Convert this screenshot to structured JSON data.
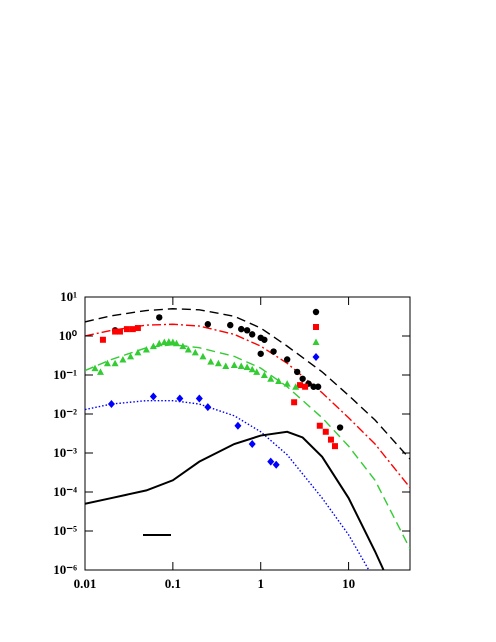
{
  "chart_data": {
    "type": "scatter",
    "xscale": "log",
    "yscale": "log",
    "xlim": [
      0.01,
      50
    ],
    "ylim": [
      1e-06,
      10
    ],
    "xticks": [
      0.01,
      0.1,
      1,
      10
    ],
    "yticks": [
      {
        "value": 10,
        "label": "10¹"
      },
      {
        "value": 1,
        "label": "10⁰"
      },
      {
        "value": 0.1,
        "label": "10⁻¹"
      },
      {
        "value": 0.01,
        "label": "10⁻²"
      },
      {
        "value": 0.001,
        "label": "10⁻³"
      },
      {
        "value": 0.0001,
        "label": "10⁻⁴"
      },
      {
        "value": 1e-05,
        "label": "10⁻⁵"
      },
      {
        "value": 1e-06,
        "label": "10⁻⁶"
      }
    ],
    "series": [
      {
        "color": "#000000",
        "marker": "circle",
        "x": [
          0.022,
          0.07,
          0.25,
          0.45,
          0.6,
          0.7,
          0.8,
          1.0,
          1.1,
          1.0,
          1.4,
          2.0,
          2.6,
          3.0,
          3.5,
          4.0,
          4.5,
          8.0
        ],
        "values": [
          1.4,
          3.0,
          2.0,
          1.9,
          1.5,
          1.4,
          1.1,
          0.9,
          0.8,
          0.35,
          0.4,
          0.25,
          0.12,
          0.08,
          0.06,
          0.05,
          0.05,
          0.0045
        ]
      },
      {
        "color": "#ff0000",
        "marker": "square",
        "x": [
          0.016,
          0.022,
          0.025,
          0.03,
          0.035,
          0.04,
          2.4,
          2.8,
          3.2,
          4.7,
          5.5,
          6.3,
          7.0
        ],
        "values": [
          0.8,
          1.3,
          1.3,
          1.5,
          1.5,
          1.6,
          0.02,
          0.055,
          0.05,
          0.005,
          0.0035,
          0.0022,
          0.0015
        ]
      },
      {
        "color": "#33cc33",
        "marker": "triangle",
        "x": [
          0.013,
          0.015,
          0.018,
          0.022,
          0.027,
          0.033,
          0.04,
          0.05,
          0.06,
          0.07,
          0.08,
          0.09,
          0.1,
          0.11,
          0.13,
          0.15,
          0.18,
          0.22,
          0.27,
          0.33,
          0.4,
          0.5,
          0.6,
          0.7,
          0.8,
          0.9,
          1.1,
          1.3,
          1.6,
          2.0,
          2.5
        ],
        "values": [
          0.15,
          0.12,
          0.2,
          0.2,
          0.25,
          0.3,
          0.38,
          0.45,
          0.55,
          0.65,
          0.7,
          0.72,
          0.7,
          0.65,
          0.55,
          0.45,
          0.38,
          0.3,
          0.22,
          0.2,
          0.17,
          0.18,
          0.17,
          0.16,
          0.14,
          0.12,
          0.1,
          0.08,
          0.07,
          0.06,
          0.05
        ]
      },
      {
        "color": "#0000ff",
        "marker": "diamond",
        "x": [
          0.02,
          0.06,
          0.12,
          0.2,
          0.25,
          0.55,
          0.8,
          1.3,
          1.5
        ],
        "values": [
          0.018,
          0.028,
          0.025,
          0.025,
          0.015,
          0.005,
          0.0017,
          0.0006,
          0.0005
        ]
      },
      {
        "color": "#000000",
        "line": "dashed",
        "x": [
          0.01,
          0.02,
          0.05,
          0.1,
          0.2,
          0.5,
          1,
          2,
          5,
          10,
          20,
          50
        ],
        "values": [
          2.3,
          3.3,
          4.5,
          5,
          4.7,
          3.2,
          1.6,
          0.55,
          0.12,
          0.03,
          0.007,
          0.0007
        ]
      },
      {
        "color": "#ff0000",
        "line": "dash-dot",
        "x": [
          0.01,
          0.02,
          0.05,
          0.1,
          0.2,
          0.5,
          1,
          2,
          5,
          10,
          20,
          50
        ],
        "values": [
          1.0,
          1.4,
          1.9,
          2.0,
          1.8,
          1.1,
          0.55,
          0.2,
          0.035,
          0.008,
          0.0017,
          0.00013
        ]
      },
      {
        "color": "#33cc33",
        "line": "dashed",
        "x": [
          0.01,
          0.02,
          0.05,
          0.1,
          0.2,
          0.5,
          1,
          2,
          5,
          10,
          20,
          50
        ],
        "values": [
          0.13,
          0.25,
          0.5,
          0.6,
          0.5,
          0.3,
          0.15,
          0.05,
          0.008,
          0.0015,
          0.0002,
          3.5e-06
        ]
      },
      {
        "color": "#0000ff",
        "line": "dotted",
        "x": [
          0.01,
          0.02,
          0.05,
          0.1,
          0.2,
          0.5,
          1,
          2,
          5,
          10,
          17
        ],
        "values": [
          0.013,
          0.018,
          0.022,
          0.022,
          0.018,
          0.009,
          0.0035,
          0.0009,
          7e-05,
          8e-06,
          1e-06
        ]
      },
      {
        "color": "#000000",
        "line": "solid",
        "x": [
          0.01,
          0.02,
          0.05,
          0.1,
          0.2,
          0.5,
          1,
          2,
          3,
          5,
          10,
          20,
          25
        ],
        "values": [
          5e-05,
          7e-05,
          0.00011,
          0.0002,
          0.0006,
          0.0017,
          0.0028,
          0.0035,
          0.0025,
          0.0008,
          7e-05,
          3e-06,
          1e-06
        ]
      }
    ]
  }
}
